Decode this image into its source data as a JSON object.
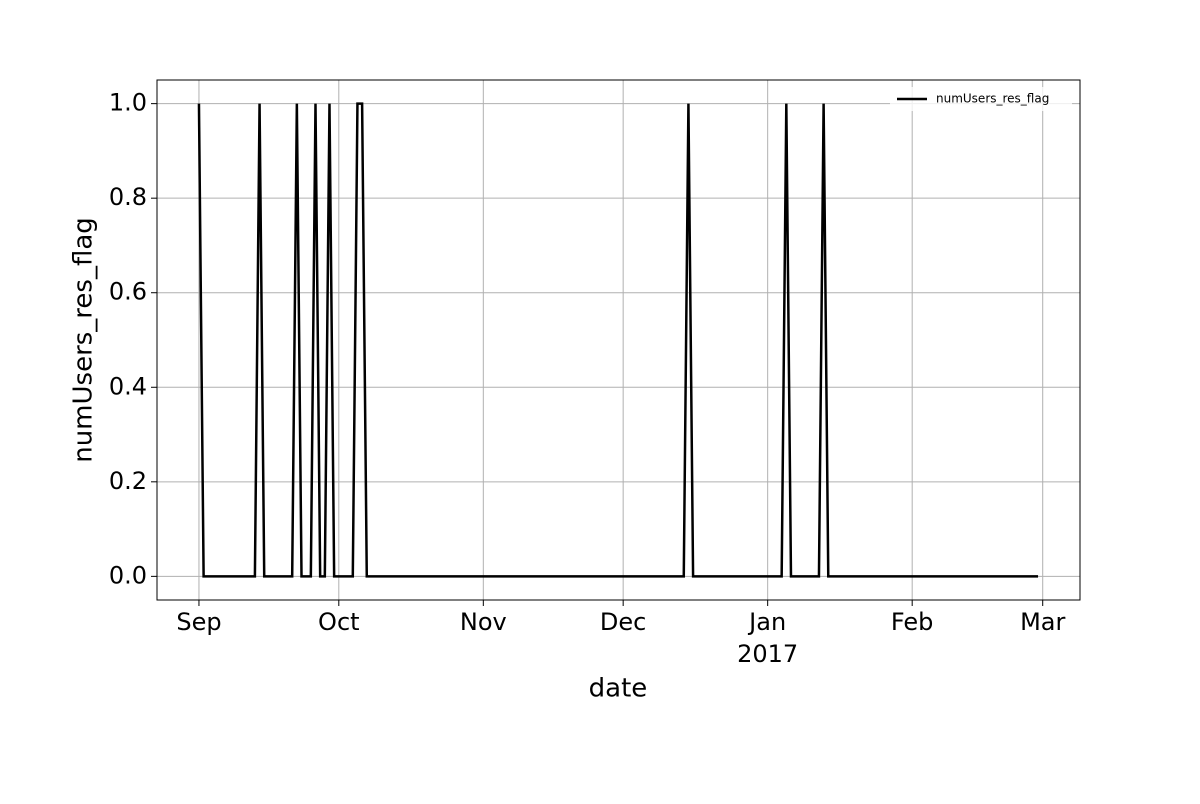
{
  "chart_data": {
    "type": "line",
    "xlabel": "date",
    "ylabel": "numUsers_res_flag",
    "x": [
      0,
      1,
      12,
      13,
      14,
      20,
      21,
      22,
      24,
      25,
      26,
      27,
      28,
      29,
      33,
      34,
      35,
      36,
      104,
      105,
      106,
      125,
      126,
      127,
      133,
      134,
      135,
      180
    ],
    "series": [
      {
        "name": "numUsers_res_flag",
        "color": "#000000",
        "values": [
          1,
          0,
          0,
          1,
          0,
          0,
          1,
          0,
          0,
          1,
          0,
          0,
          1,
          0,
          0,
          1,
          1,
          0,
          0,
          1,
          0,
          0,
          1,
          0,
          0,
          1,
          0,
          0
        ]
      }
    ],
    "xlim": [
      -9,
      189
    ],
    "xticks": [
      {
        "value": 0,
        "label": "Sep"
      },
      {
        "value": 30,
        "label": "Oct"
      },
      {
        "value": 61,
        "label": "Nov"
      },
      {
        "value": 91,
        "label": "Dec"
      },
      {
        "value": 122,
        "label": "Jan",
        "sublabel": "2017"
      },
      {
        "value": 153,
        "label": "Feb"
      },
      {
        "value": 181,
        "label": "Mar"
      }
    ],
    "ylim": [
      -0.05,
      1.05
    ],
    "yticks": [
      {
        "value": 0,
        "label": "0.0"
      },
      {
        "value": 0.2,
        "label": "0.2"
      },
      {
        "value": 0.4,
        "label": "0.4"
      },
      {
        "value": 0.6,
        "label": "0.6"
      },
      {
        "value": 0.8,
        "label": "0.8"
      },
      {
        "value": 1,
        "label": "1.0"
      }
    ],
    "grid": true,
    "legend": "upper right"
  }
}
